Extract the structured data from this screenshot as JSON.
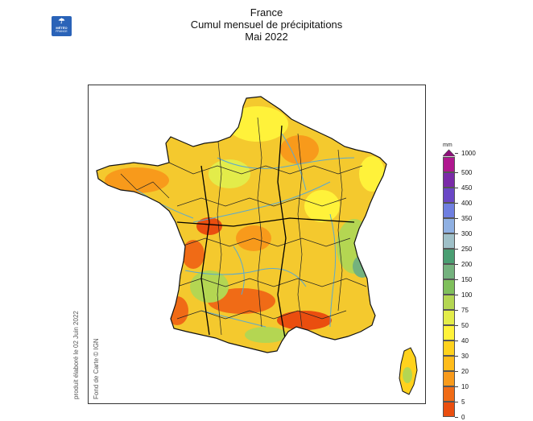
{
  "title": {
    "line1": "France",
    "line2": "Cumul mensuel de précipitations",
    "line3": "Mai 2022"
  },
  "logo": {
    "mark": "☂",
    "line1": "MÉTÉO",
    "line2": "FRANCE",
    "icon": "meteo-france-logo"
  },
  "credits": {
    "produced": "produit élaboré le 02 Juin 2022",
    "basemap": "Fond de Carte © IGN"
  },
  "legend": {
    "unit": "mm",
    "max_label": "1000",
    "classes": [
      {
        "label": "500",
        "color": "#b0178f"
      },
      {
        "label": "450",
        "color": "#7a2aa8"
      },
      {
        "label": "400",
        "color": "#6a47c6"
      },
      {
        "label": "350",
        "color": "#6f7fe0"
      },
      {
        "label": "300",
        "color": "#8fb0e2"
      },
      {
        "label": "250",
        "color": "#9fc0c8"
      },
      {
        "label": "200",
        "color": "#4a9e72"
      },
      {
        "label": "150",
        "color": "#74b27e"
      },
      {
        "label": "100",
        "color": "#7fbf5c"
      },
      {
        "label": "75",
        "color": "#b4d652"
      },
      {
        "label": "50",
        "color": "#e3ec4a"
      },
      {
        "label": "40",
        "color": "#fff23a"
      },
      {
        "label": "30",
        "color": "#ffd21d"
      },
      {
        "label": "20",
        "color": "#ffbc1a"
      },
      {
        "label": "10",
        "color": "#f89a1b"
      },
      {
        "label": "5",
        "color": "#f06b16"
      },
      {
        "label": "0",
        "color": "#ea4e0f"
      }
    ]
  },
  "map": {
    "land_color": "#f4c92e",
    "river_color": "#5aa9cf",
    "border_color": "#222222",
    "sea_color": "#ffffff"
  }
}
